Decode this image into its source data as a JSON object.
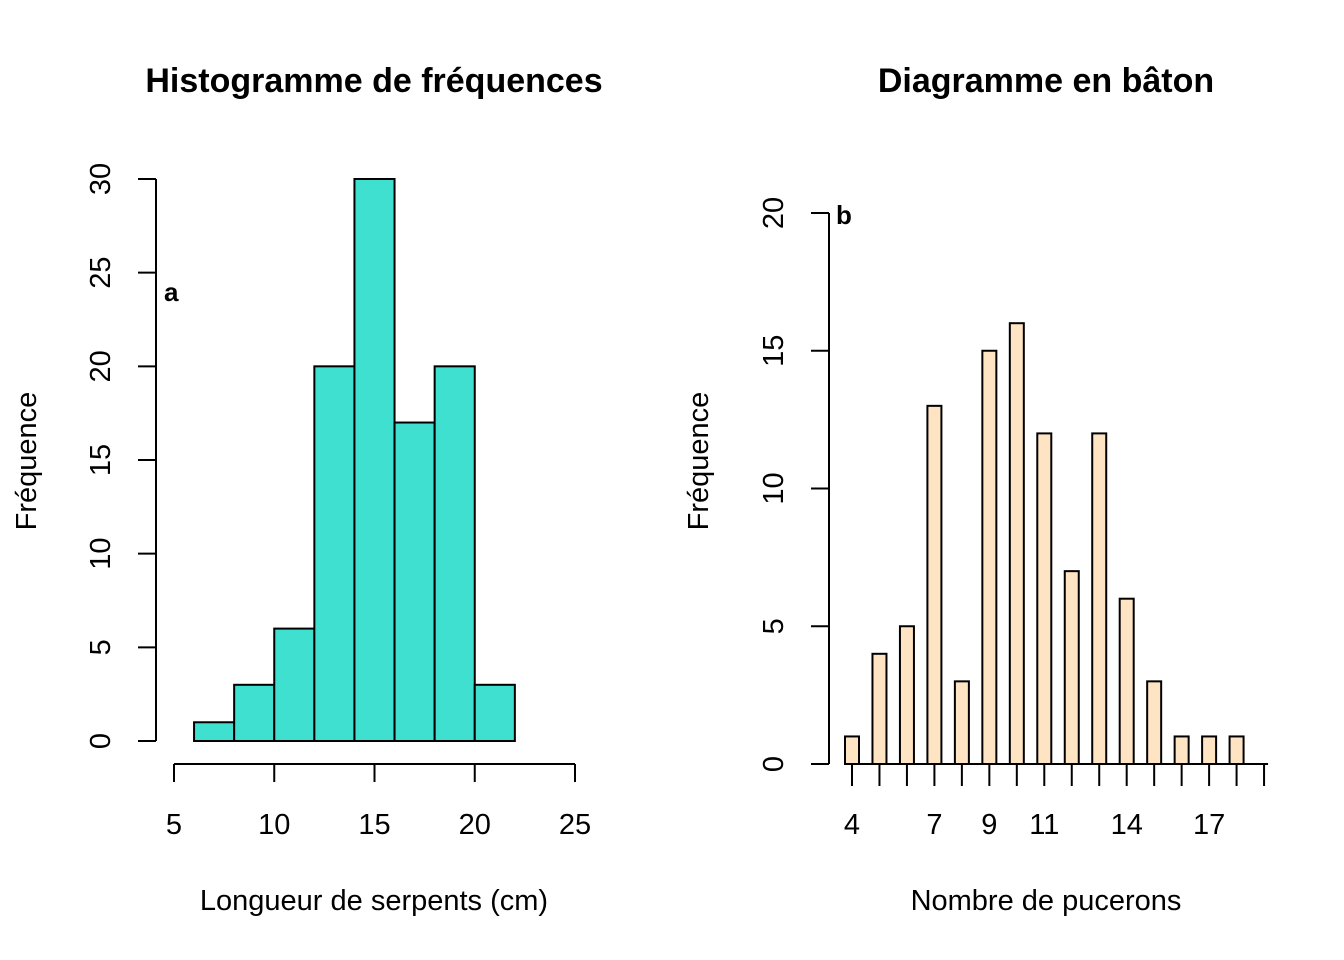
{
  "chart_data": [
    {
      "type": "bar",
      "title": "Histogramme de fréquences",
      "xlabel": "Longueur de serpents (cm)",
      "ylabel": "Fréquence",
      "panel_label": "a",
      "bin_edges": [
        6,
        8,
        10,
        12,
        14,
        16,
        18,
        20,
        22
      ],
      "values": [
        1,
        3,
        6,
        20,
        30,
        17,
        20,
        3
      ],
      "xlim": [
        5,
        25
      ],
      "ylim": [
        0,
        30
      ],
      "xticks": [
        5,
        10,
        15,
        20,
        25
      ],
      "yticks": [
        0,
        5,
        10,
        15,
        20,
        25,
        30
      ],
      "bar_color": "#40E0D0",
      "grid": false
    },
    {
      "type": "bar",
      "title": "Diagramme en bâton",
      "xlabel": "Nombre de pucerons",
      "ylabel": "Fréquence",
      "panel_label": "b",
      "categories": [
        "4",
        "5",
        "6",
        "7",
        "8",
        "9",
        "10",
        "11",
        "12",
        "13",
        "14",
        "15",
        "16",
        "17",
        "18",
        "19"
      ],
      "values": [
        1,
        4,
        5,
        13,
        3,
        15,
        16,
        12,
        7,
        12,
        6,
        3,
        1,
        1,
        1,
        0
      ],
      "xtick_labels": [
        "4",
        "7",
        "9",
        "11",
        "14",
        "17"
      ],
      "ylim": [
        0,
        20
      ],
      "yticks": [
        0,
        5,
        10,
        15,
        20
      ],
      "bar_color": "#FFE4C4",
      "grid": false
    }
  ]
}
